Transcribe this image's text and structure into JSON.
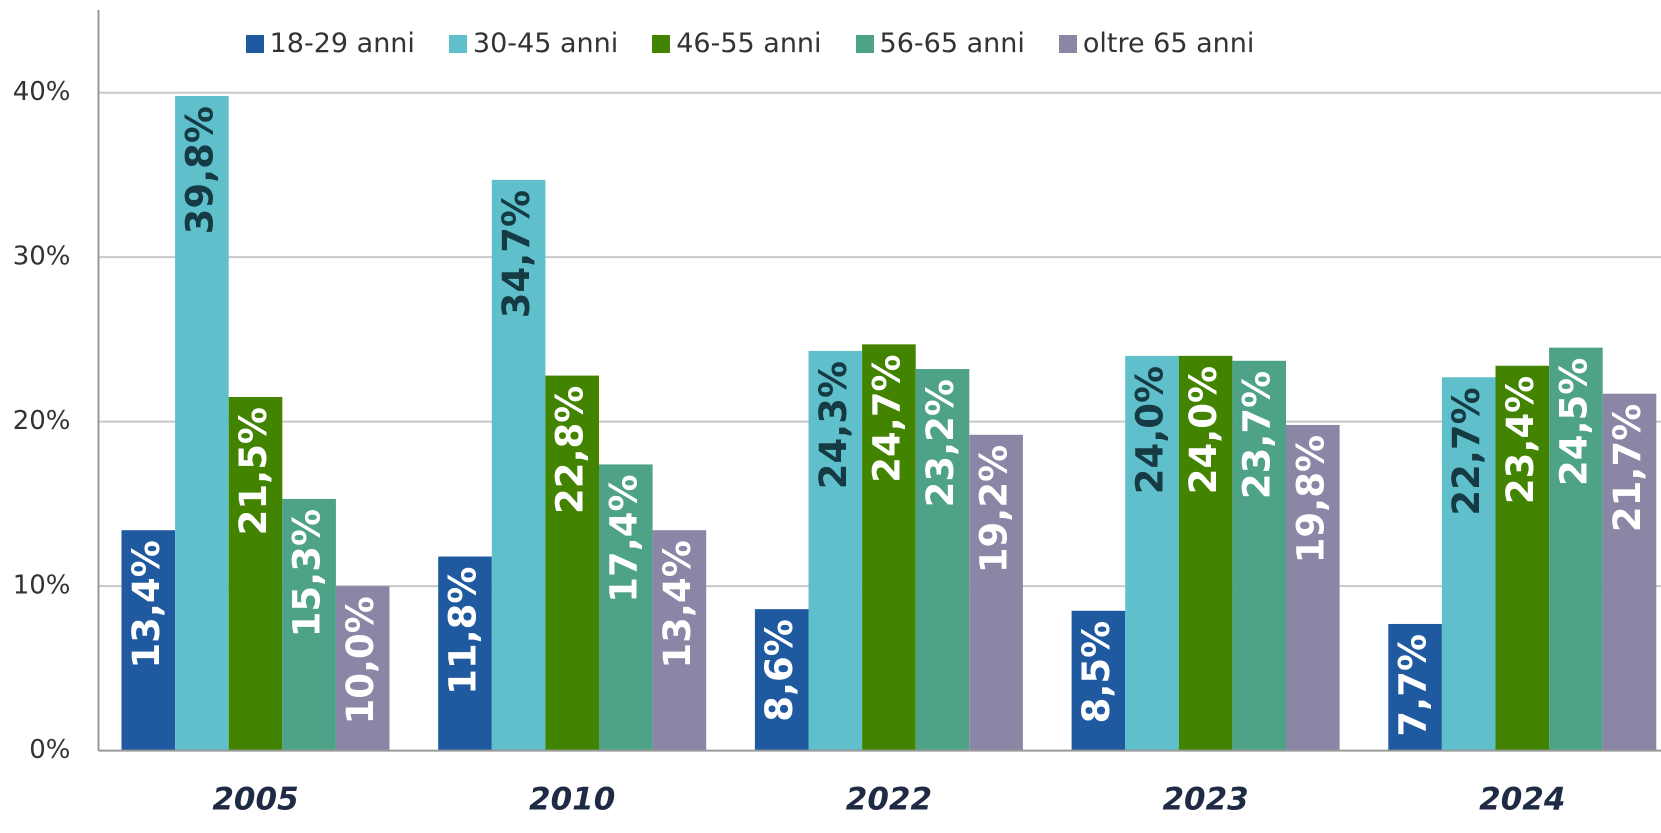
{
  "chart_data": {
    "type": "bar",
    "categories": [
      "2005",
      "2010",
      "2022",
      "2023",
      "2024"
    ],
    "series": [
      {
        "name": "18-29 anni",
        "color": "#1f5aa0",
        "label_color": "#ffffff",
        "values": [
          13.4,
          11.8,
          8.6,
          8.5,
          7.7
        ],
        "value_labels": [
          "13,4%",
          "11,8%",
          "8,6%",
          "8,5%",
          "7,7%"
        ]
      },
      {
        "name": "30-45 anni",
        "color": "#5fc0cc",
        "label_color": "#163a44",
        "values": [
          39.8,
          34.7,
          24.3,
          24.0,
          22.7
        ],
        "value_labels": [
          "39,8%",
          "34,7%",
          "24,3%",
          "24,0%",
          "22,7%"
        ]
      },
      {
        "name": "46-55 anni",
        "color": "#428400",
        "label_color": "#ffffff",
        "values": [
          21.5,
          22.8,
          24.7,
          24.0,
          23.4
        ],
        "value_labels": [
          "21,5%",
          "22,8%",
          "24,7%",
          "24,0%",
          "23,4%"
        ]
      },
      {
        "name": "56-65 anni",
        "color": "#4ea287",
        "label_color": "#ffffff",
        "values": [
          15.3,
          17.4,
          23.2,
          23.7,
          24.5
        ],
        "value_labels": [
          "15,3%",
          "17,4%",
          "23,2%",
          "23,7%",
          "24,5%"
        ]
      },
      {
        "name": "oltre 65 anni",
        "color": "#8a87a6",
        "label_color": "#ffffff",
        "values": [
          10.0,
          13.4,
          19.2,
          19.8,
          21.7
        ],
        "value_labels": [
          "10,0%",
          "13,4%",
          "19,2%",
          "19,8%",
          "21,7%"
        ]
      }
    ],
    "ylim": [
      0,
      40
    ],
    "yticks": [
      {
        "value": 0,
        "label": "0%"
      },
      {
        "value": 10,
        "label": "10%"
      },
      {
        "value": 20,
        "label": "20%"
      },
      {
        "value": 30,
        "label": "30%"
      },
      {
        "value": 40,
        "label": "40%"
      }
    ],
    "grid": true,
    "legend": "top"
  }
}
